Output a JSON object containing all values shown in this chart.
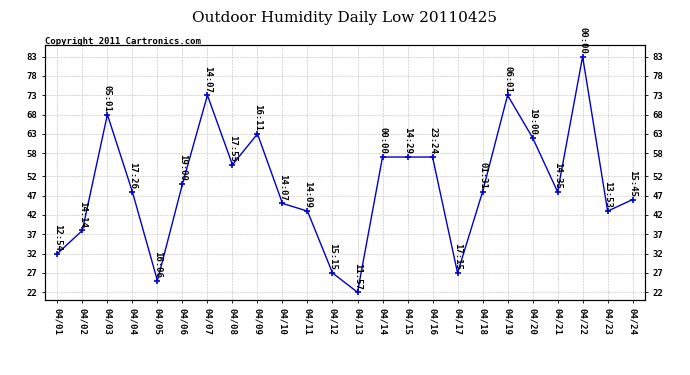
{
  "title": "Outdoor Humidity Daily Low 20110425",
  "copyright": "Copyright 2011 Cartronics.com",
  "x_labels": [
    "04/01",
    "04/02",
    "04/03",
    "04/04",
    "04/05",
    "04/06",
    "04/07",
    "04/08",
    "04/09",
    "04/10",
    "04/11",
    "04/12",
    "04/13",
    "04/14",
    "04/15",
    "04/16",
    "04/17",
    "04/18",
    "04/19",
    "04/20",
    "04/21",
    "04/22",
    "04/23",
    "04/24"
  ],
  "y_values": [
    32,
    38,
    68,
    48,
    25,
    50,
    73,
    55,
    63,
    45,
    43,
    27,
    22,
    57,
    57,
    57,
    27,
    48,
    73,
    62,
    48,
    83,
    43,
    46
  ],
  "point_labels": [
    "12:54",
    "14:14",
    "05:01",
    "17:26",
    "16:06",
    "19:00",
    "14:07",
    "17:55",
    "16:11",
    "14:07",
    "14:09",
    "15:15",
    "11:57",
    "00:00",
    "14:29",
    "23:24",
    "17:15",
    "01:31",
    "06:01",
    "19:00",
    "14:35",
    "00:00",
    "13:53",
    "15:45"
  ],
  "y_ticks": [
    22,
    27,
    32,
    37,
    42,
    47,
    52,
    58,
    63,
    68,
    73,
    78,
    83
  ],
  "ylim": [
    20,
    86
  ],
  "line_color": "#0000cc",
  "marker_color": "#0000cc",
  "bg_color": "#ffffff",
  "grid_color": "#bbbbbb",
  "title_fontsize": 11,
  "label_fontsize": 6.5,
  "copyright_fontsize": 6.5
}
